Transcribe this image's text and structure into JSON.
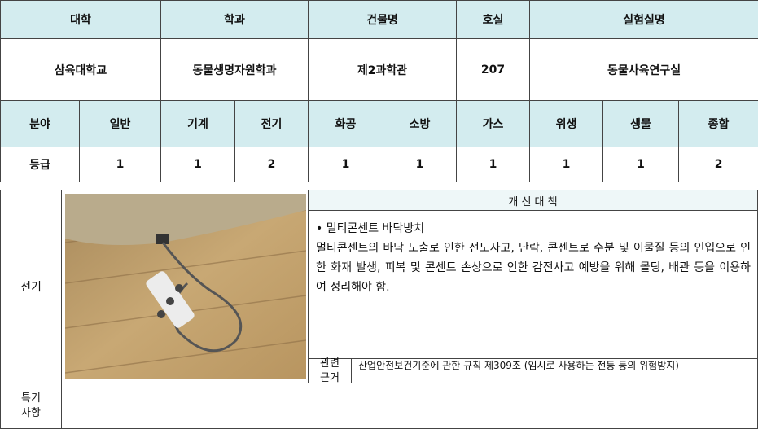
{
  "info_table": {
    "headers": [
      "대학",
      "학과",
      "건물명",
      "호실",
      "실험실명"
    ],
    "values": [
      "삼육대학교",
      "동물생명자원학과",
      "제2과학관",
      "207",
      "동물사육연구실"
    ]
  },
  "grade_table": {
    "field_label": "분야",
    "fields": [
      "일반",
      "기계",
      "전기",
      "화공",
      "소방",
      "가스",
      "위생",
      "생물",
      "종합"
    ],
    "row_label": "등급",
    "grades": [
      1,
      1,
      2,
      1,
      1,
      1,
      1,
      1,
      2
    ]
  },
  "inspection": {
    "category": "전기",
    "heading": "개 선 대 책",
    "item": "• 멀티콘센트 바닥방치",
    "description": "멀티콘센트의 바닥 노출로 인한 전도사고, 단락, 콘센트로 수분 및 이물질 등의 인입으로 인한 화재 발생, 피복 및 콘센트 손상으로 인한 감전사고 예방을 위해 몰딩, 배관 등을 이용하여 정리해야 함.",
    "reference_label": "관련근거",
    "reference": "산업안전보건기준에 관한 규칙 제309조 (임시로 사용하는 전등 등의 위험방지)"
  },
  "remarks": {
    "label": "특기사항"
  }
}
